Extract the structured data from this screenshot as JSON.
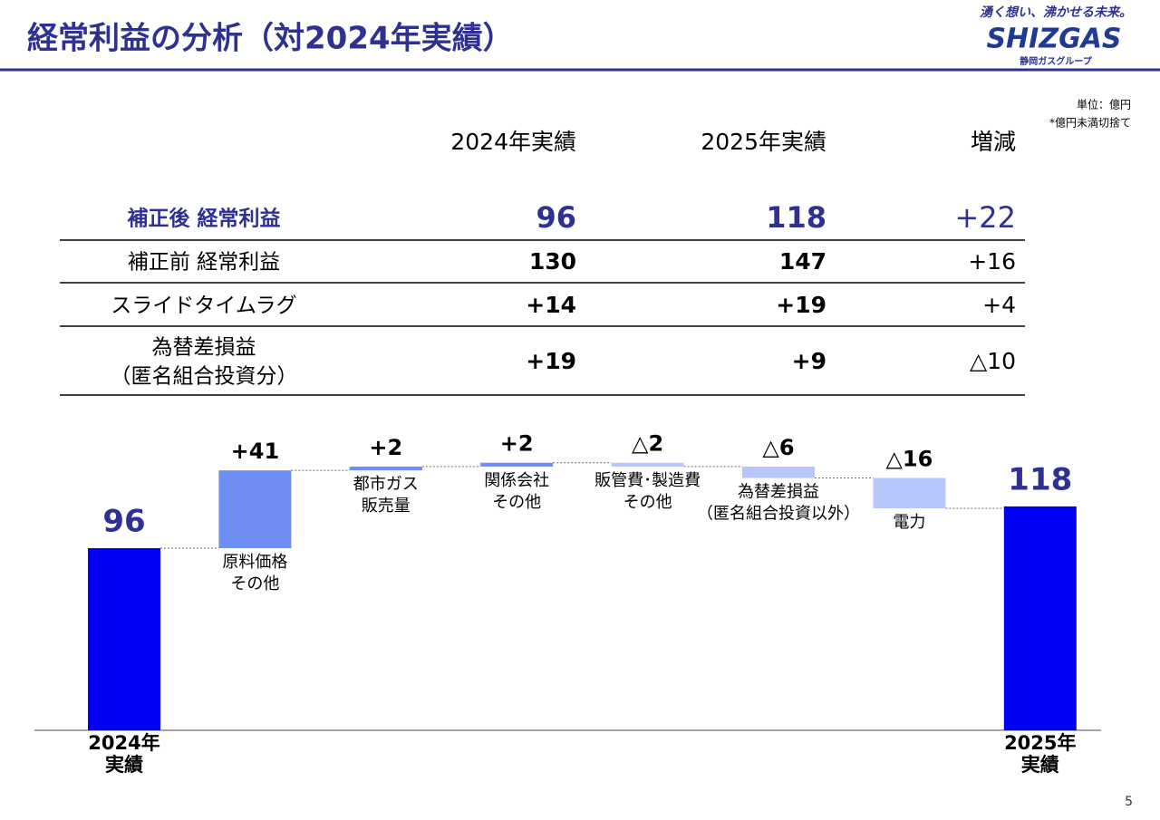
{
  "header": {
    "title": "経常利益の分析（対2024年実績）",
    "tagline": "湧く想い、沸かせる未来。",
    "logo": "SHIZGAS",
    "group": "静岡ガスグループ"
  },
  "notes": [
    "単位：億円",
    "*億円未満切捨て"
  ],
  "table": {
    "columns": [
      "2024年実績",
      "2025年実績",
      "増減"
    ],
    "rows": [
      {
        "label": [
          "補正後 経常利益"
        ],
        "values": [
          "96",
          "118",
          "+22"
        ]
      },
      {
        "label": [
          "補正前 経常利益"
        ],
        "values": [
          "130",
          "147",
          "+16"
        ]
      },
      {
        "label": [
          "スライドタイムラグ"
        ],
        "values": [
          "+14",
          "+19",
          "+4"
        ]
      },
      {
        "label": [
          "為替差損益",
          "（匿名組合投資分）"
        ],
        "values": [
          "+19",
          "+9",
          "△10"
        ]
      }
    ]
  },
  "chart_data": {
    "type": "waterfall",
    "categories": [
      [
        "2024年",
        "実績"
      ],
      [
        "原料価格",
        "その他"
      ],
      [
        "都市ガス",
        "販売量"
      ],
      [
        "関係会社",
        "その他"
      ],
      [
        "販管費･製造費",
        "その他"
      ],
      [
        "為替差損益",
        "（匿名組合投資以外）"
      ],
      [
        "電力"
      ],
      [
        "2025年",
        "実績"
      ]
    ],
    "values": [
      96,
      41,
      2,
      2,
      -2,
      -6,
      -16,
      118
    ],
    "value_labels": [
      "96",
      "+41",
      "+2",
      "+2",
      "△2",
      "△6",
      "△16",
      "118"
    ],
    "total_color": "#0000f5",
    "increase_color": "#6e8ef6",
    "decrease_color": "#b7c7fc"
  },
  "page_number": "5"
}
